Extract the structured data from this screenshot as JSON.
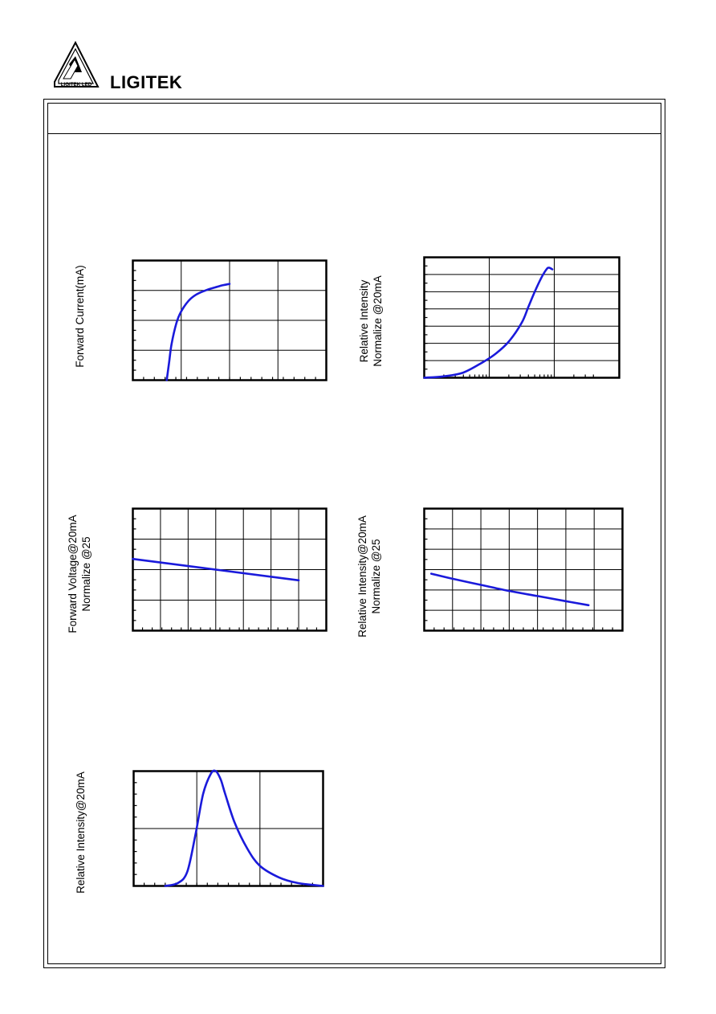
{
  "brand": {
    "name": "LIGITEK",
    "logo_text": "LIGITEK LED"
  },
  "colors": {
    "curve": "#1a1adb",
    "frame": "#000000"
  },
  "charts": {
    "fv": {
      "ylabel_lines": [
        "Forward Current(mA)"
      ]
    },
    "ri": {
      "ylabel_lines": [
        "Relative Intensity",
        "Normalize @20mA"
      ]
    },
    "vt": {
      "ylabel_lines": [
        "Forward Voltage@20mA",
        "Normalize @25"
      ]
    },
    "it": {
      "ylabel_lines": [
        "Relative Intensity@20mA",
        "Normalize @25"
      ]
    },
    "sp": {
      "ylabel_lines": [
        "Relative Intensity@20mA"
      ]
    }
  },
  "chart_data": [
    {
      "type": "line",
      "id": "forward-current-chart",
      "ylabel": "Forward Current(mA)",
      "xlim": [
        0,
        4
      ],
      "ylim": [
        0,
        4
      ],
      "series": [
        {
          "x": [
            0.7,
            0.75,
            0.8,
            0.9,
            1.0,
            1.15,
            1.3,
            1.5,
            1.7,
            1.85,
            2.0
          ],
          "y": [
            0.0,
            0.6,
            1.2,
            1.9,
            2.3,
            2.65,
            2.85,
            3.0,
            3.1,
            3.17,
            3.22
          ]
        }
      ]
    },
    {
      "type": "line",
      "id": "relative-intensity-vs-current-chart",
      "ylabel": "Relative Intensity Normalize @20mA",
      "xlim": [
        0,
        3
      ],
      "ylim": [
        0,
        7
      ],
      "series": [
        {
          "x": [
            0.0,
            0.3,
            0.6,
            0.9,
            1.1,
            1.3,
            1.5,
            1.6,
            1.7,
            1.8,
            1.88,
            1.92,
            1.97
          ],
          "y": [
            0.0,
            0.08,
            0.3,
            0.9,
            1.4,
            2.1,
            3.2,
            4.1,
            5.0,
            5.8,
            6.3,
            6.4,
            6.3
          ]
        }
      ]
    },
    {
      "type": "line",
      "id": "forward-voltage-vs-temperature-chart",
      "ylabel": "Forward Voltage@20mA Normalize @25",
      "xlim": [
        0,
        7
      ],
      "ylim": [
        0,
        4
      ],
      "series": [
        {
          "x": [
            0,
            6
          ],
          "y": [
            2.35,
            1.65
          ]
        }
      ]
    },
    {
      "type": "line",
      "id": "relative-intensity-vs-temperature-chart",
      "ylabel": "Relative Intensity@20mA Normalize @25",
      "xlim": [
        0,
        7
      ],
      "ylim": [
        0,
        6
      ],
      "series": [
        {
          "x": [
            0.25,
            1,
            2,
            3,
            4,
            5,
            5.8
          ],
          "y": [
            2.8,
            2.55,
            2.25,
            1.95,
            1.7,
            1.45,
            1.25
          ]
        }
      ]
    },
    {
      "type": "line",
      "id": "spectral-distribution-chart",
      "ylabel": "Relative Intensity@20mA",
      "xlim": [
        0,
        3
      ],
      "ylim": [
        0,
        2
      ],
      "series": [
        {
          "x": [
            0.5,
            0.7,
            0.85,
            0.98,
            1.1,
            1.22,
            1.3,
            1.38,
            1.45,
            1.6,
            1.8,
            2.0,
            2.3,
            2.6,
            3.0
          ],
          "y": [
            0.0,
            0.05,
            0.25,
            0.9,
            1.6,
            1.95,
            2.0,
            1.85,
            1.6,
            1.1,
            0.65,
            0.35,
            0.15,
            0.05,
            0.0
          ]
        }
      ]
    }
  ]
}
